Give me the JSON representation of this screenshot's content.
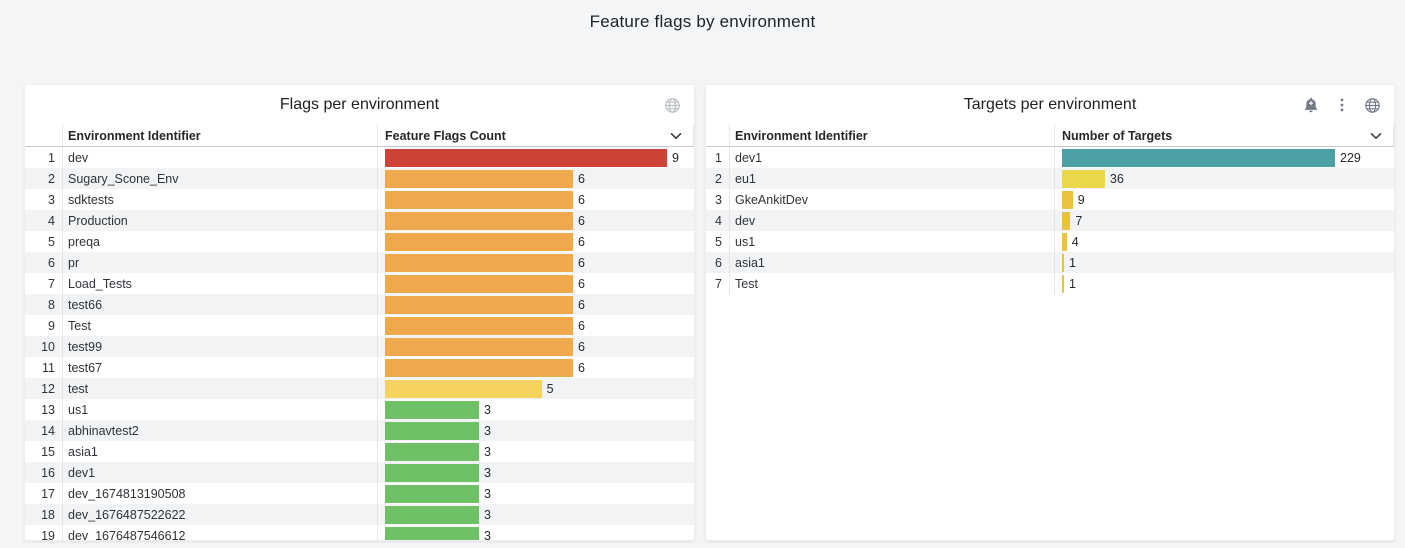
{
  "page": {
    "title": "Feature flags by environment",
    "background": "#f4f5f6"
  },
  "icon_names": {
    "globe": "globe-icon",
    "bell-plus": "bell-plus-icon",
    "kebab": "kebab-menu-icon",
    "chevron-down": "chevron-down-icon"
  },
  "colors": {
    "red": "#ce4337",
    "orange": "#f0a84d",
    "yellow": "#f5d35e",
    "green": "#70c066",
    "teal": "#4aa0a5",
    "lime_yellow": "#ebd84a",
    "amber": "#ebc23e",
    "even_row": "#f2f3f5"
  },
  "panels": [
    {
      "title": "Flags per environment",
      "header_icons": [
        "globe"
      ],
      "columns": [
        "Environment Identifier",
        "Feature Flags Count"
      ],
      "max_value": 9,
      "rows": [
        {
          "n": 1,
          "env": "dev",
          "value": 9,
          "color": "#ce4337"
        },
        {
          "n": 2,
          "env": "Sugary_Scone_Env",
          "value": 6,
          "color": "#f0a84d"
        },
        {
          "n": 3,
          "env": "sdktests",
          "value": 6,
          "color": "#f0a84d"
        },
        {
          "n": 4,
          "env": "Production",
          "value": 6,
          "color": "#f0a84d"
        },
        {
          "n": 5,
          "env": "preqa",
          "value": 6,
          "color": "#f0a84d"
        },
        {
          "n": 6,
          "env": "pr",
          "value": 6,
          "color": "#f0a84d"
        },
        {
          "n": 7,
          "env": "Load_Tests",
          "value": 6,
          "color": "#f0a84d"
        },
        {
          "n": 8,
          "env": "test66",
          "value": 6,
          "color": "#f0a84d"
        },
        {
          "n": 9,
          "env": "Test",
          "value": 6,
          "color": "#f0a84d"
        },
        {
          "n": 10,
          "env": "test99",
          "value": 6,
          "color": "#f0a84d"
        },
        {
          "n": 11,
          "env": "test67",
          "value": 6,
          "color": "#f0a84d"
        },
        {
          "n": 12,
          "env": "test",
          "value": 5,
          "color": "#f5d35e"
        },
        {
          "n": 13,
          "env": "us1",
          "value": 3,
          "color": "#70c066"
        },
        {
          "n": 14,
          "env": "abhinavtest2",
          "value": 3,
          "color": "#70c066"
        },
        {
          "n": 15,
          "env": "asia1",
          "value": 3,
          "color": "#70c066"
        },
        {
          "n": 16,
          "env": "dev1",
          "value": 3,
          "color": "#70c066"
        },
        {
          "n": 17,
          "env": "dev_1674813190508",
          "value": 3,
          "color": "#70c066"
        },
        {
          "n": 18,
          "env": "dev_1676487522622",
          "value": 3,
          "color": "#70c066"
        },
        {
          "n": 19,
          "env": "dev_1676487546612",
          "value": 3,
          "color": "#70c066"
        }
      ]
    },
    {
      "title": "Targets per environment",
      "header_icons": [
        "bell-plus",
        "kebab",
        "globe"
      ],
      "columns": [
        "Environment Identifier",
        "Number of Targets"
      ],
      "max_value": 229,
      "rows": [
        {
          "n": 1,
          "env": "dev1",
          "value": 229,
          "color": "#4aa0a5"
        },
        {
          "n": 2,
          "env": "eu1",
          "value": 36,
          "color": "#ebd84a"
        },
        {
          "n": 3,
          "env": "GkeAnkitDev",
          "value": 9,
          "color": "#ebc23e"
        },
        {
          "n": 4,
          "env": "dev",
          "value": 7,
          "color": "#ebc23e"
        },
        {
          "n": 5,
          "env": "us1",
          "value": 4,
          "color": "#ebc23e"
        },
        {
          "n": 6,
          "env": "asia1",
          "value": 1,
          "color": "#ebc23e"
        },
        {
          "n": 7,
          "env": "Test",
          "value": 1,
          "color": "#ebc23e"
        }
      ]
    }
  ]
}
